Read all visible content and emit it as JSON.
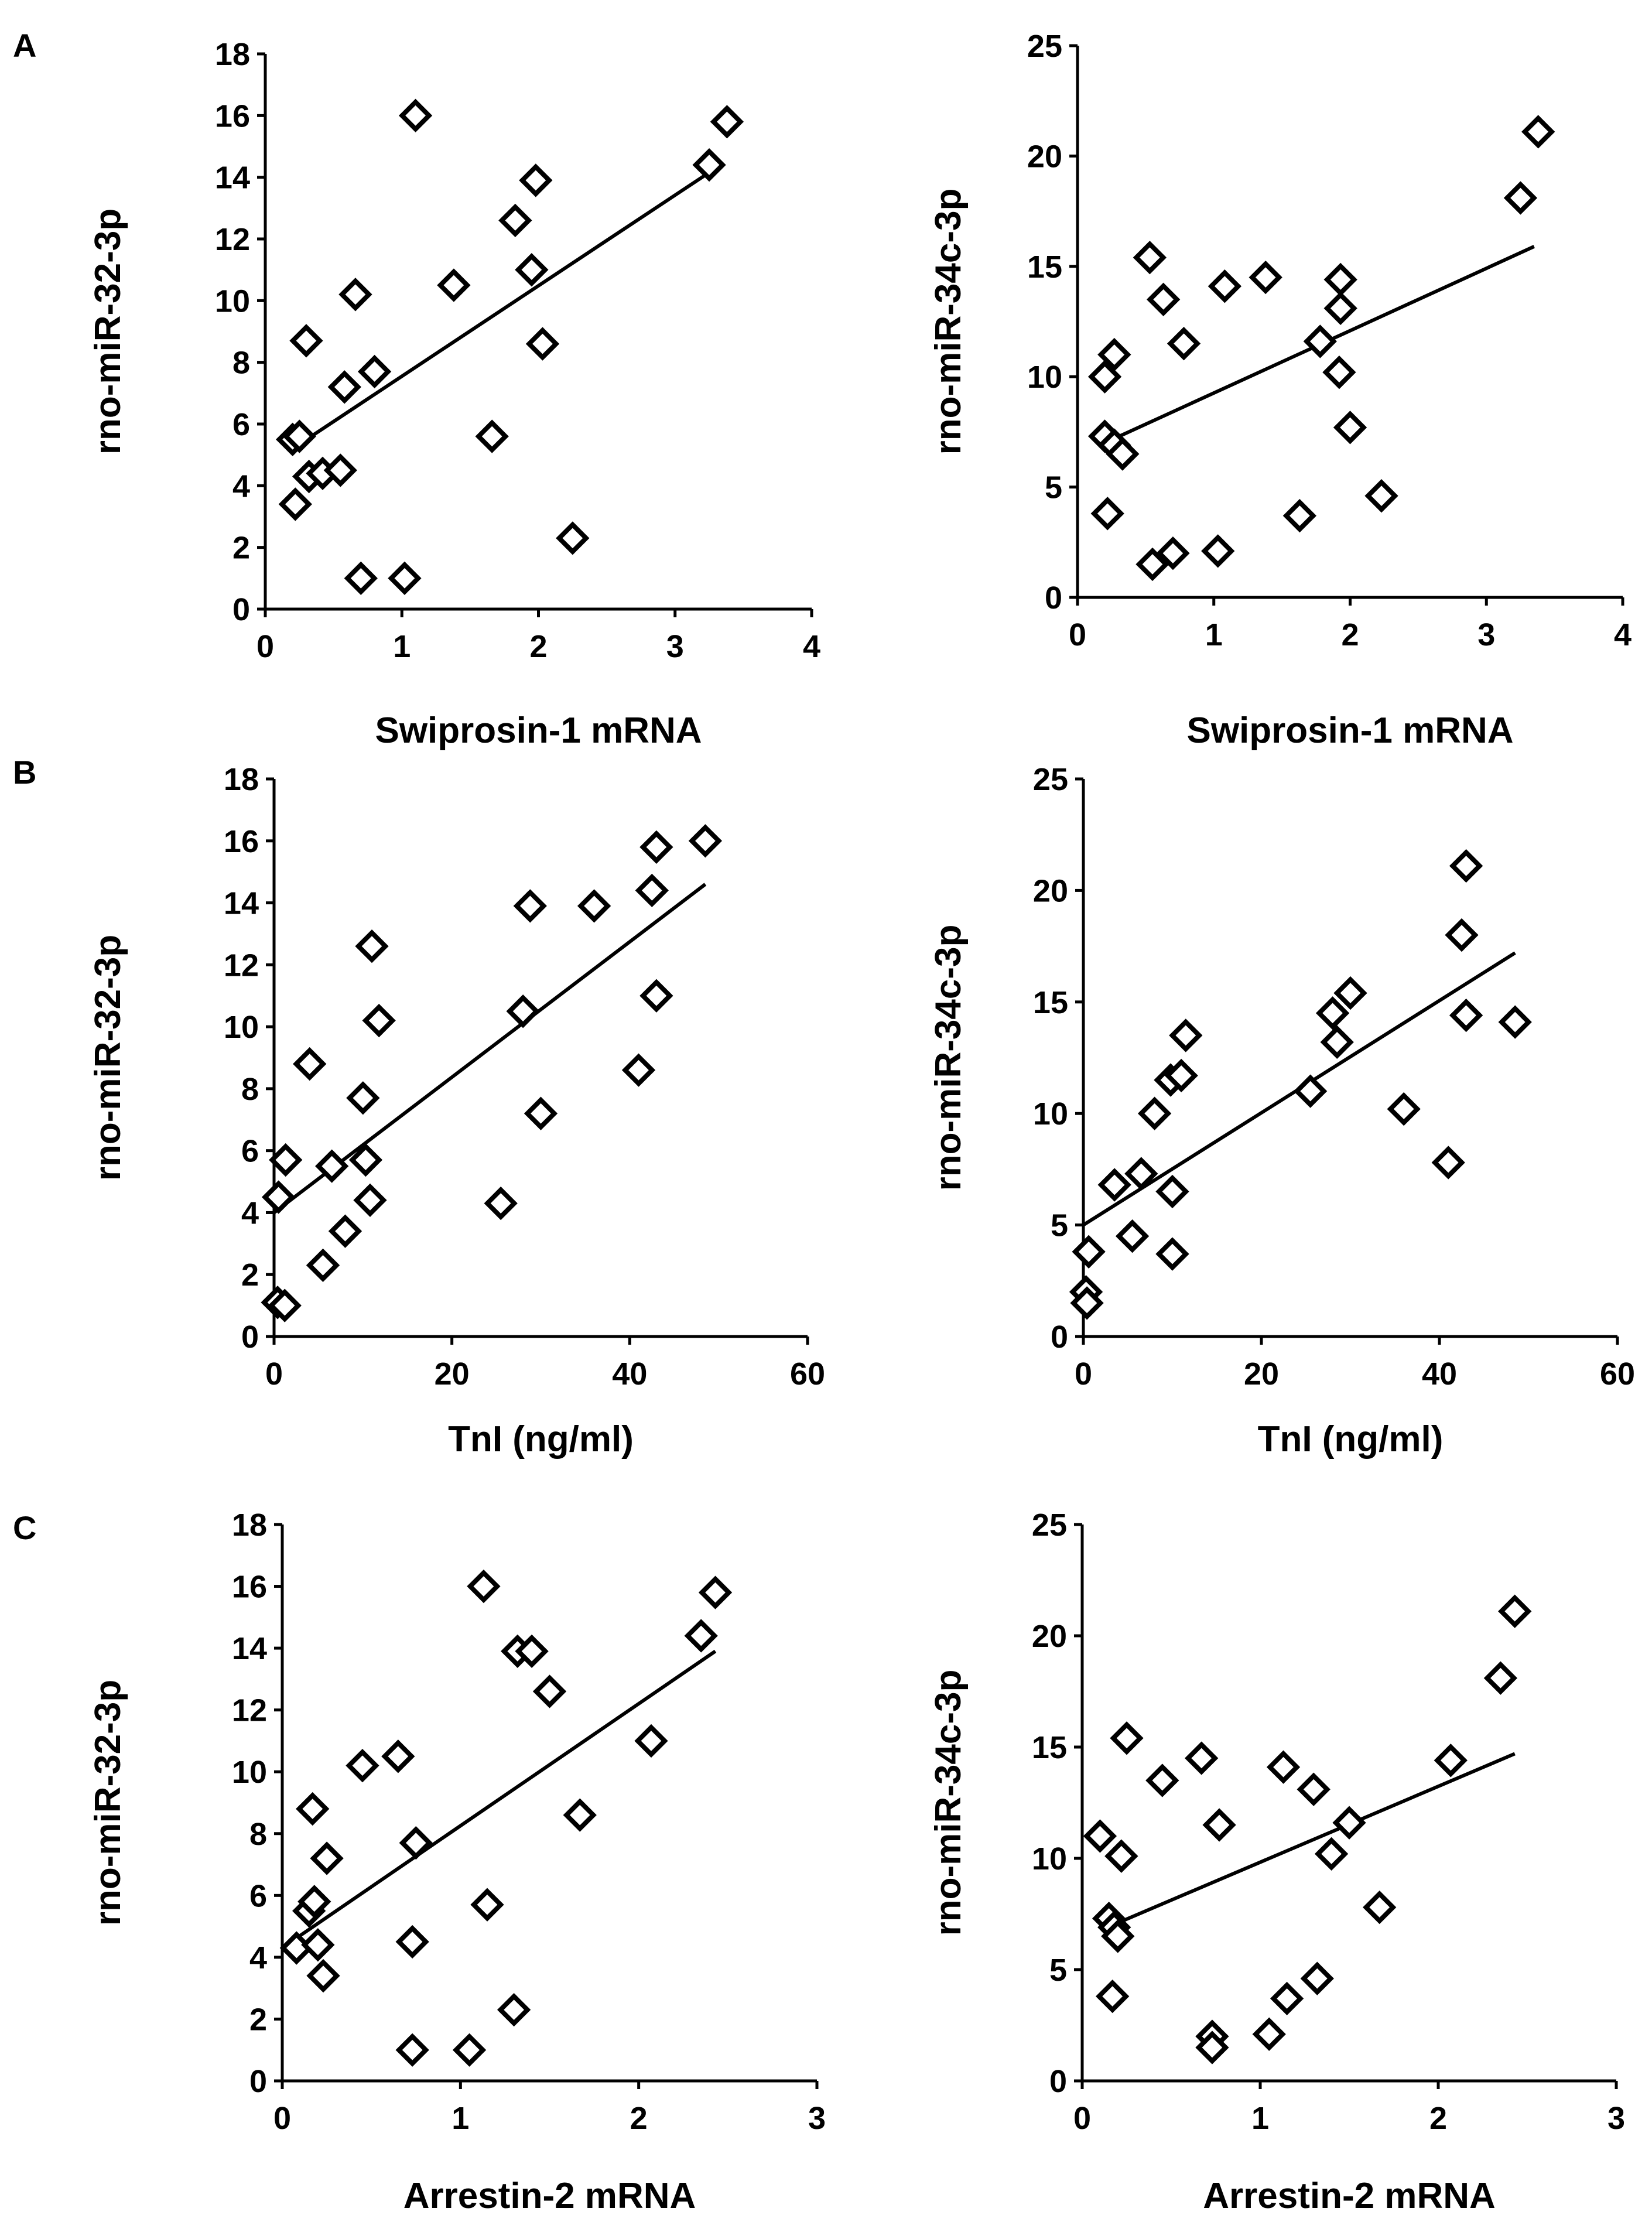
{
  "panel_labels": {
    "A": "A",
    "B": "B",
    "C": "C"
  },
  "chart_data": [
    {
      "id": "A-left",
      "type": "scatter",
      "panel": "A",
      "xlabel": "Swiprosin-1 mRNA",
      "ylabel": "rno-miR-32-3p",
      "xlim": [
        0,
        4
      ],
      "ylim": [
        0,
        18
      ],
      "xticks": [
        0,
        1,
        2,
        3,
        4
      ],
      "yticks": [
        0,
        2,
        4,
        6,
        8,
        10,
        12,
        14,
        16,
        18
      ],
      "points": [
        [
          0.2,
          5.5
        ],
        [
          0.25,
          5.6
        ],
        [
          0.22,
          3.4
        ],
        [
          0.3,
          8.7
        ],
        [
          0.32,
          4.3
        ],
        [
          0.42,
          4.4
        ],
        [
          0.55,
          4.5
        ],
        [
          0.58,
          7.2
        ],
        [
          0.66,
          10.2
        ],
        [
          0.7,
          1.0
        ],
        [
          0.8,
          7.7
        ],
        [
          1.02,
          1.0
        ],
        [
          1.1,
          16.0
        ],
        [
          1.38,
          10.5
        ],
        [
          1.66,
          5.6
        ],
        [
          1.83,
          12.6
        ],
        [
          1.95,
          11.0
        ],
        [
          1.98,
          13.9
        ],
        [
          2.03,
          8.6
        ],
        [
          2.25,
          2.3
        ],
        [
          3.25,
          14.4
        ],
        [
          3.38,
          15.8
        ]
      ],
      "trend": [
        [
          0.2,
          5.2
        ],
        [
          3.3,
          14.3
        ]
      ]
    },
    {
      "id": "A-right",
      "type": "scatter",
      "panel": "A",
      "xlabel": "Swiprosin-1 mRNA",
      "ylabel": "rno-miR-34c-3p",
      "xlim": [
        0,
        4
      ],
      "ylim": [
        0,
        25
      ],
      "xticks": [
        0,
        1,
        2,
        3,
        4
      ],
      "yticks": [
        0,
        5,
        10,
        15,
        20,
        25
      ],
      "points": [
        [
          0.2,
          10.0
        ],
        [
          0.2,
          7.3
        ],
        [
          0.22,
          3.8
        ],
        [
          0.27,
          11.0
        ],
        [
          0.27,
          6.9
        ],
        [
          0.33,
          6.5
        ],
        [
          0.53,
          15.4
        ],
        [
          0.55,
          1.5
        ],
        [
          0.63,
          13.5
        ],
        [
          0.7,
          2.0
        ],
        [
          0.78,
          11.5
        ],
        [
          1.03,
          2.1
        ],
        [
          1.08,
          14.1
        ],
        [
          1.38,
          14.5
        ],
        [
          1.63,
          3.7
        ],
        [
          1.78,
          11.6
        ],
        [
          1.92,
          10.2
        ],
        [
          1.93,
          14.4
        ],
        [
          1.93,
          13.1
        ],
        [
          2.0,
          7.7
        ],
        [
          2.23,
          4.6
        ],
        [
          3.25,
          18.1
        ],
        [
          3.38,
          21.1
        ]
      ],
      "trend": [
        [
          0.2,
          7.0
        ],
        [
          3.35,
          15.9
        ]
      ]
    },
    {
      "id": "B-left",
      "type": "scatter",
      "panel": "B",
      "xlabel": "TnI (ng/ml)",
      "ylabel": "rno-miR-32-3p",
      "xlim": [
        0,
        60
      ],
      "ylim": [
        0,
        18
      ],
      "xticks": [
        0,
        20,
        40,
        60
      ],
      "yticks": [
        0,
        2,
        4,
        6,
        8,
        10,
        12,
        14,
        16,
        18
      ],
      "points": [
        [
          0.4,
          1.1
        ],
        [
          1.2,
          1.0
        ],
        [
          0.5,
          4.5
        ],
        [
          1.3,
          5.7
        ],
        [
          4.0,
          8.8
        ],
        [
          5.5,
          2.3
        ],
        [
          6.5,
          5.5
        ],
        [
          8.0,
          3.4
        ],
        [
          10.0,
          7.7
        ],
        [
          10.3,
          5.7
        ],
        [
          10.8,
          4.4
        ],
        [
          11.0,
          12.6
        ],
        [
          11.8,
          10.2
        ],
        [
          25.5,
          4.3
        ],
        [
          28.0,
          10.5
        ],
        [
          28.8,
          13.9
        ],
        [
          30.0,
          7.2
        ],
        [
          36.0,
          13.9
        ],
        [
          41.0,
          8.6
        ],
        [
          42.5,
          14.4
        ],
        [
          43.0,
          11.0
        ],
        [
          43.0,
          15.8
        ],
        [
          48.5,
          16.0
        ]
      ],
      "trend": [
        [
          0,
          4.0
        ],
        [
          48.5,
          14.6
        ]
      ]
    },
    {
      "id": "B-right",
      "type": "scatter",
      "panel": "B",
      "xlabel": "TnI (ng/ml)",
      "ylabel": "rno-miR-34c-3p",
      "xlim": [
        0,
        60
      ],
      "ylim": [
        0,
        25
      ],
      "xticks": [
        0,
        20,
        40,
        60
      ],
      "yticks": [
        0,
        5,
        10,
        15,
        20,
        25
      ],
      "points": [
        [
          0.3,
          2.0
        ],
        [
          0.4,
          1.5
        ],
        [
          0.6,
          3.8
        ],
        [
          3.5,
          6.8
        ],
        [
          5.5,
          4.5
        ],
        [
          6.5,
          7.3
        ],
        [
          8.0,
          10.0
        ],
        [
          9.8,
          11.5
        ],
        [
          10.0,
          6.5
        ],
        [
          10.0,
          3.7
        ],
        [
          11.0,
          11.7
        ],
        [
          11.5,
          13.5
        ],
        [
          25.5,
          11.0
        ],
        [
          28.0,
          14.5
        ],
        [
          28.5,
          13.2
        ],
        [
          30.0,
          15.4
        ],
        [
          36.0,
          10.2
        ],
        [
          41.0,
          7.8
        ],
        [
          42.5,
          18.0
        ],
        [
          43.0,
          14.4
        ],
        [
          43.0,
          21.1
        ],
        [
          48.5,
          14.1
        ]
      ],
      "trend": [
        [
          0,
          5.0
        ],
        [
          48.5,
          17.2
        ]
      ]
    },
    {
      "id": "C-left",
      "type": "scatter",
      "panel": "C",
      "xlabel": "Arrestin-2 mRNA",
      "ylabel": "rno-miR-32-3p",
      "xlim": [
        0,
        3
      ],
      "ylim": [
        0,
        18
      ],
      "xticks": [
        0,
        1,
        2,
        3
      ],
      "yticks": [
        0,
        2,
        4,
        6,
        8,
        10,
        12,
        14,
        16,
        18
      ],
      "points": [
        [
          0.08,
          4.3
        ],
        [
          0.15,
          5.5
        ],
        [
          0.17,
          8.8
        ],
        [
          0.18,
          5.8
        ],
        [
          0.2,
          4.4
        ],
        [
          0.23,
          3.4
        ],
        [
          0.25,
          7.2
        ],
        [
          0.45,
          10.2
        ],
        [
          0.65,
          10.5
        ],
        [
          0.73,
          1.0
        ],
        [
          0.73,
          4.5
        ],
        [
          0.75,
          7.7
        ],
        [
          1.05,
          1.0
        ],
        [
          1.13,
          16.0
        ],
        [
          1.15,
          5.7
        ],
        [
          1.3,
          2.3
        ],
        [
          1.32,
          13.9
        ],
        [
          1.4,
          13.9
        ],
        [
          1.5,
          12.6
        ],
        [
          1.67,
          8.6
        ],
        [
          2.07,
          11.0
        ],
        [
          2.35,
          14.4
        ],
        [
          2.43,
          15.8
        ]
      ],
      "trend": [
        [
          0.1,
          4.7
        ],
        [
          2.43,
          13.9
        ]
      ]
    },
    {
      "id": "C-right",
      "type": "scatter",
      "panel": "C",
      "xlabel": "Arrestin-2 mRNA",
      "ylabel": "rno-miR-34c-3p",
      "xlim": [
        0,
        3
      ],
      "ylim": [
        0,
        25
      ],
      "xticks": [
        0,
        1,
        2,
        3
      ],
      "yticks": [
        0,
        5,
        10,
        15,
        20,
        25
      ],
      "points": [
        [
          0.1,
          11.0
        ],
        [
          0.15,
          7.3
        ],
        [
          0.17,
          3.8
        ],
        [
          0.18,
          6.9
        ],
        [
          0.2,
          6.5
        ],
        [
          0.22,
          10.1
        ],
        [
          0.25,
          15.4
        ],
        [
          0.45,
          13.5
        ],
        [
          0.67,
          14.5
        ],
        [
          0.73,
          2.0
        ],
        [
          0.73,
          1.5
        ],
        [
          0.77,
          11.5
        ],
        [
          1.05,
          2.1
        ],
        [
          1.13,
          14.1
        ],
        [
          1.15,
          3.7
        ],
        [
          1.3,
          13.1
        ],
        [
          1.32,
          4.6
        ],
        [
          1.4,
          10.2
        ],
        [
          1.5,
          11.6
        ],
        [
          1.67,
          7.8
        ],
        [
          2.07,
          14.4
        ],
        [
          2.35,
          18.1
        ],
        [
          2.43,
          21.1
        ]
      ],
      "trend": [
        [
          0.2,
          7.1
        ],
        [
          2.43,
          14.7
        ]
      ]
    }
  ]
}
